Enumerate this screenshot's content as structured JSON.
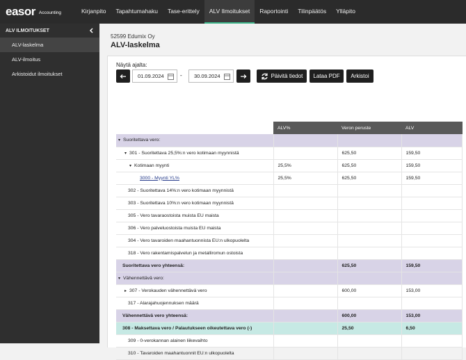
{
  "nav": {
    "logo": "easor",
    "logo_sub": "Accounting",
    "items": [
      "Kirjanpito",
      "Tapahtumahaku",
      "Tase-erittely",
      "ALV Ilmoitukset",
      "Raportointi",
      "Tilinpäätös",
      "Ylläpito"
    ]
  },
  "sidebar": {
    "title": "ALV ILMOITUKSET",
    "items": [
      "ALV-laskelma",
      "ALV-ilmoitus",
      "Arkistoidut ilmoitukset"
    ]
  },
  "page": {
    "company": "52599 Edumix Oy",
    "title": "ALV-laskelma"
  },
  "filter": {
    "label": "Näytä ajalta:",
    "start": "01.09.2024",
    "separator": "-",
    "end": "30.09.2024",
    "buttons": [
      "Päivitä tiedot",
      "Lataa PDF",
      "Arkistoi"
    ]
  },
  "table": {
    "columns": [
      "ALV%",
      "Veron peruste",
      "ALV"
    ],
    "rows": [
      {
        "label": "Suoritettava vero:"
      },
      {
        "label": "301 - Suoritettava 25,5%:n vero kotimaan myynnistä",
        "base": "625,50",
        "vat": "159,50"
      },
      {
        "label": "Kotimaan myynti",
        "alv": "25,5%",
        "base": "625,50",
        "vat": "159,50"
      },
      {
        "label": "3000 - Myynti YL%",
        "alv": "25,5%",
        "base": "625,50",
        "vat": "159,50"
      },
      {
        "label": "302 - Suoritettava 14%:n vero kotimaan myynnistä"
      },
      {
        "label": "303 - Suoritettava 10%:n vero kotimaan myynnistä"
      },
      {
        "label": "305 - Vero tavaraostoista muista EU maista"
      },
      {
        "label": "306 - Vero palveluostoista muista EU maista"
      },
      {
        "label": "304 - Vero tavaroiden maahantuonnista EU:n ulkopuolelta"
      },
      {
        "label": "318 - Vero rakentamispalvelun ja metalliromun ostoista"
      },
      {
        "label": "Suoritettava vero yhteensä:",
        "base": "625,50",
        "vat": "159,50"
      },
      {
        "label": "Vähennettävä vero:"
      },
      {
        "label": "307 - Verokauden vähennettävä vero",
        "base": "600,00",
        "vat": "153,00"
      },
      {
        "label": "317 - Alarajahuojennuksen määrä"
      },
      {
        "label": "Vähennettävä vero yhteensä:",
        "base": "600,00",
        "vat": "153,00"
      },
      {
        "label": "308 - Maksettava vero / Palautukseen oikeutettava vero (-)",
        "base": "25,50",
        "vat": "6,50"
      },
      {
        "label": "309 - 0-verokannan alainen liikevaihto"
      },
      {
        "label": "310 - Tavaroiden maahantuonnit EU:n ulkopuolelta"
      }
    ]
  }
}
